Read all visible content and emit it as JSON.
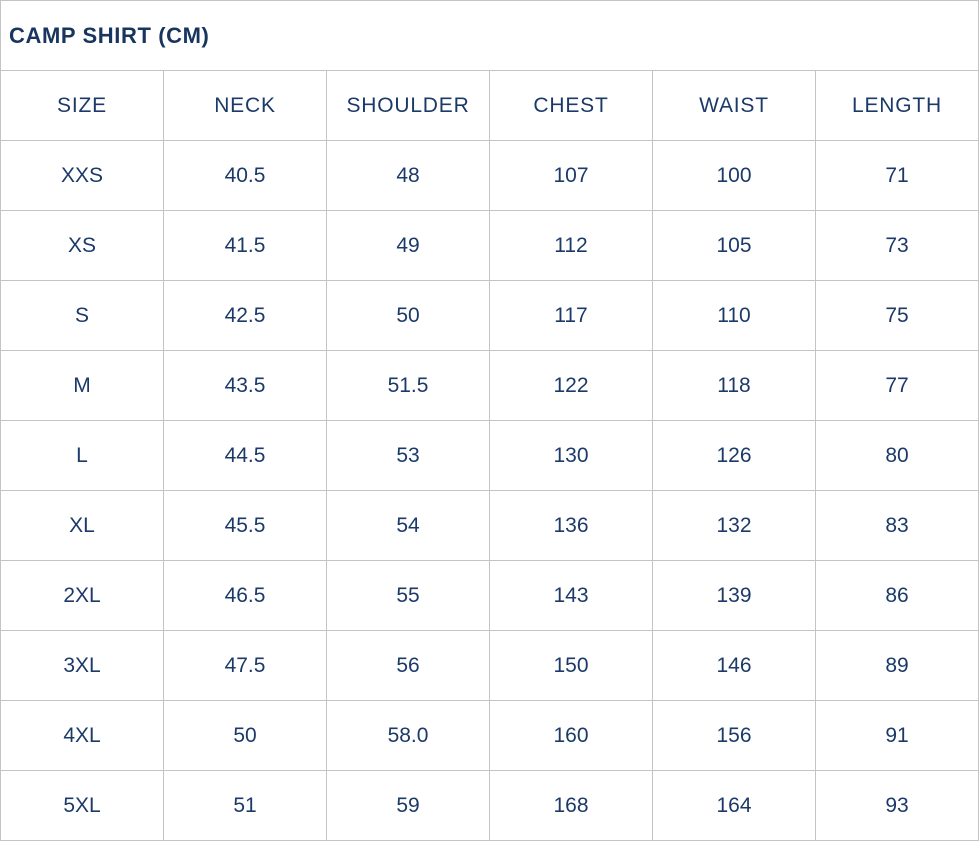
{
  "title": "CAMP SHIRT (CM)",
  "colors": {
    "text": "#1b3a68",
    "title_text": "#17355e",
    "border": "#c4c4c4",
    "background": "#ffffff"
  },
  "table": {
    "columns": [
      "SIZE",
      "NECK",
      "SHOULDER",
      "CHEST",
      "WAIST",
      "LENGTH"
    ],
    "rows": [
      [
        "XXS",
        "40.5",
        "48",
        "107",
        "100",
        "71"
      ],
      [
        "XS",
        "41.5",
        "49",
        "112",
        "105",
        "73"
      ],
      [
        "S",
        "42.5",
        "50",
        "117",
        "110",
        "75"
      ],
      [
        "M",
        "43.5",
        "51.5",
        "122",
        "118",
        "77"
      ],
      [
        "L",
        "44.5",
        "53",
        "130",
        "126",
        "80"
      ],
      [
        "XL",
        "45.5",
        "54",
        "136",
        "132",
        "83"
      ],
      [
        "2XL",
        "46.5",
        "55",
        "143",
        "139",
        "86"
      ],
      [
        "3XL",
        "47.5",
        "56",
        "150",
        "146",
        "89"
      ],
      [
        "4XL",
        "50",
        "58.0",
        "160",
        "156",
        "91"
      ],
      [
        "5XL",
        "51",
        "59",
        "168",
        "164",
        "93"
      ]
    ]
  },
  "chart_data": {
    "type": "table",
    "title": "CAMP SHIRT (CM)",
    "unit": "cm",
    "columns": [
      "SIZE",
      "NECK",
      "SHOULDER",
      "CHEST",
      "WAIST",
      "LENGTH"
    ],
    "rows": [
      [
        "XXS",
        "40.5",
        "48",
        "107",
        "100",
        "71"
      ],
      [
        "XS",
        "41.5",
        "49",
        "112",
        "105",
        "73"
      ],
      [
        "S",
        "42.5",
        "50",
        "117",
        "110",
        "75"
      ],
      [
        "M",
        "43.5",
        "51.5",
        "122",
        "118",
        "77"
      ],
      [
        "L",
        "44.5",
        "53",
        "130",
        "126",
        "80"
      ],
      [
        "XL",
        "45.5",
        "54",
        "136",
        "132",
        "83"
      ],
      [
        "2XL",
        "46.5",
        "55",
        "143",
        "139",
        "86"
      ],
      [
        "3XL",
        "47.5",
        "56",
        "150",
        "146",
        "89"
      ],
      [
        "4XL",
        "50",
        "58.0",
        "160",
        "156",
        "91"
      ],
      [
        "5XL",
        "51",
        "59",
        "168",
        "164",
        "93"
      ]
    ]
  }
}
